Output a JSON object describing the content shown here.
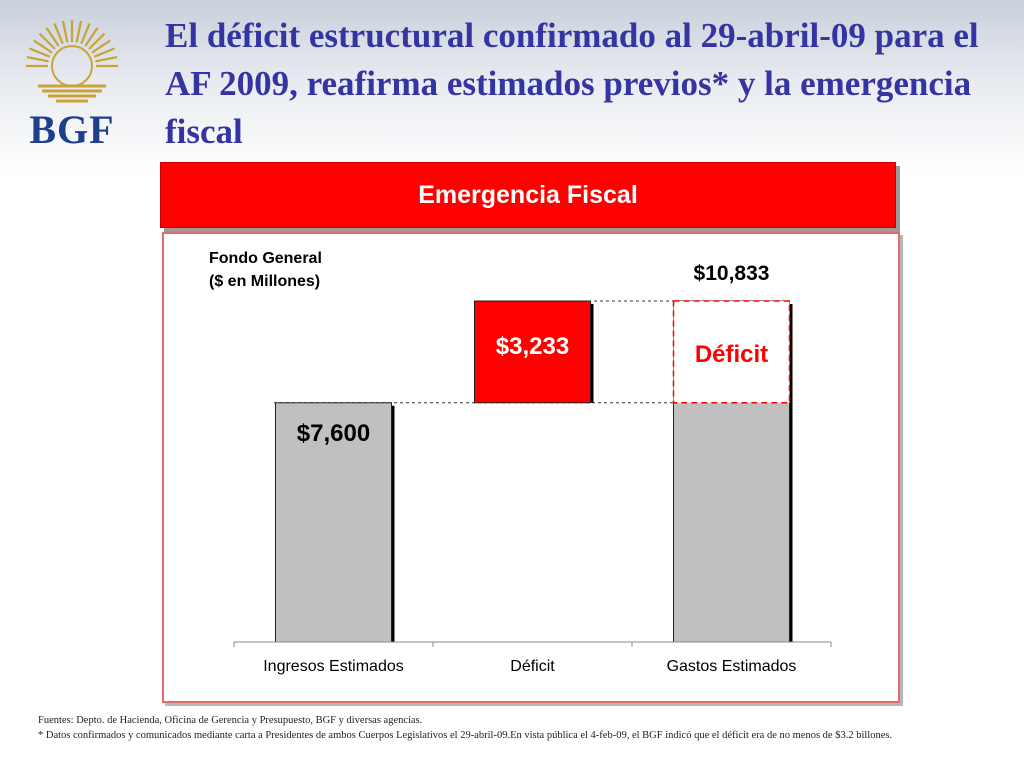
{
  "slide": {
    "title": "El déficit estructural confirmado al 29-abril-09 para el AF 2009, reafirma estimados previos* y la emergencia fiscal",
    "banner": "Emergencia Fiscal",
    "logo_text": "BGF",
    "footnote_line1": "Fuentes: Depto. de Hacienda, Oficina de Gerencia y Presupuesto, BGF y diversas agencias.",
    "footnote_line2": "* Datos confirmados y comunicados mediante carta a Presidentes de ambos Cuerpos Legislativos el 29-abril-09.En vista pública el 4-feb-09, el BGF indicó que el déficit era de no menos de $3.2 billones."
  },
  "colors": {
    "title": "#3434a3",
    "banner": "#ff0000",
    "bar_gray": "#c0c0c0",
    "bar_red": "#ff0000",
    "deficit_text": "#ff0000",
    "logo_blue": "#1d3f8c",
    "logo_gold": "#c9a23a"
  },
  "chart_data": {
    "type": "bar",
    "subtype": "waterfall",
    "title": "Fondo General",
    "subtitle": "($ en Millones)",
    "categories": [
      "Ingresos Estimados",
      "Déficit",
      "Gastos Estimados"
    ],
    "values": [
      7600,
      3233,
      10833
    ],
    "bars": [
      {
        "category": "Ingresos Estimados",
        "start": 0,
        "end": 7600,
        "label": "$7,600",
        "color": "#c0c0c0"
      },
      {
        "category": "Déficit",
        "start": 7600,
        "end": 10833,
        "label": "$3,233",
        "color": "#ff0000"
      },
      {
        "category": "Gastos Estimados",
        "start": 0,
        "end": 10833,
        "label": "$10,833",
        "color": "#c0c0c0",
        "overlay": {
          "start": 7600,
          "end": 10833,
          "label": "Déficit"
        }
      }
    ],
    "ylim": [
      0,
      10833
    ],
    "grid": false,
    "legend": "none",
    "xlabel": "",
    "ylabel": ""
  }
}
